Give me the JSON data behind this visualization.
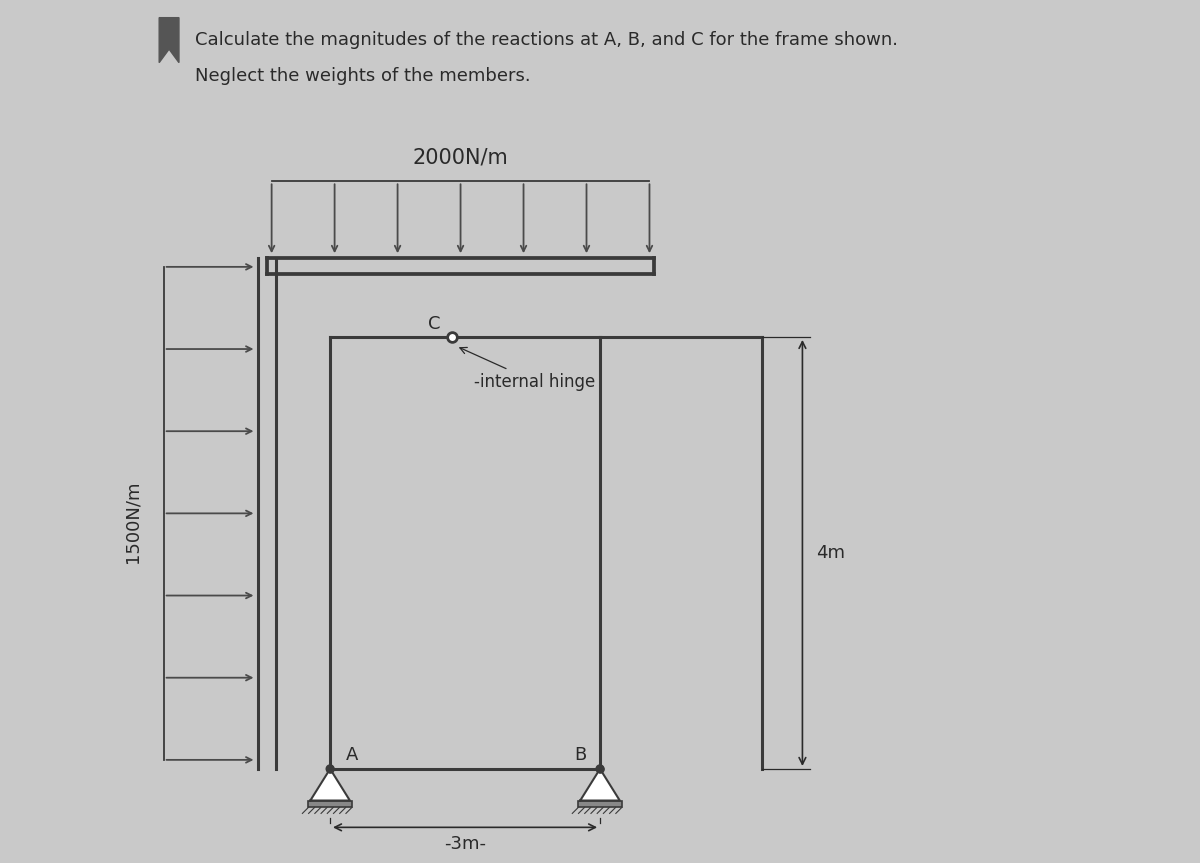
{
  "bg_color": "#c9c9c9",
  "title_line1": "Calculate the magnitudes of the reactions at A, B, and C for the frame shown.",
  "title_line2": "Neglect the weights of the members.",
  "load_top_label": "2000N/m",
  "load_left_label": "1500N/m",
  "dim_horiz_label": "-3m-",
  "dim_vert_label": "4m",
  "hinge_label": "C",
  "hinge_note": "-internal hinge",
  "support_A_label": "A",
  "support_B_label": "B",
  "frame_color": "#3a3a3a",
  "arrow_color": "#4a4a4a",
  "text_color": "#2a2a2a",
  "frame_lw": 2.2,
  "thin_lw": 1.3,
  "A_x": 2.0,
  "A_y": 1.0,
  "B_x": 5.0,
  "B_y": 1.0,
  "outer_left_x": 1.3,
  "outer_top_y": 6.5,
  "outer_right_beam_x": 5.6,
  "inner_left_x": 2.0,
  "inner_right_x": 5.0,
  "inner_top_y": 5.8,
  "inner_bot_y": 1.0,
  "hinge_x": 3.35,
  "hinge_y": 5.8,
  "right_ext_x": 6.8,
  "right_ext_top_y": 5.8,
  "right_ext_bot_y": 1.0,
  "xmin": 0.0,
  "xmax": 10.0,
  "ymin": 0.0,
  "ymax": 9.5
}
